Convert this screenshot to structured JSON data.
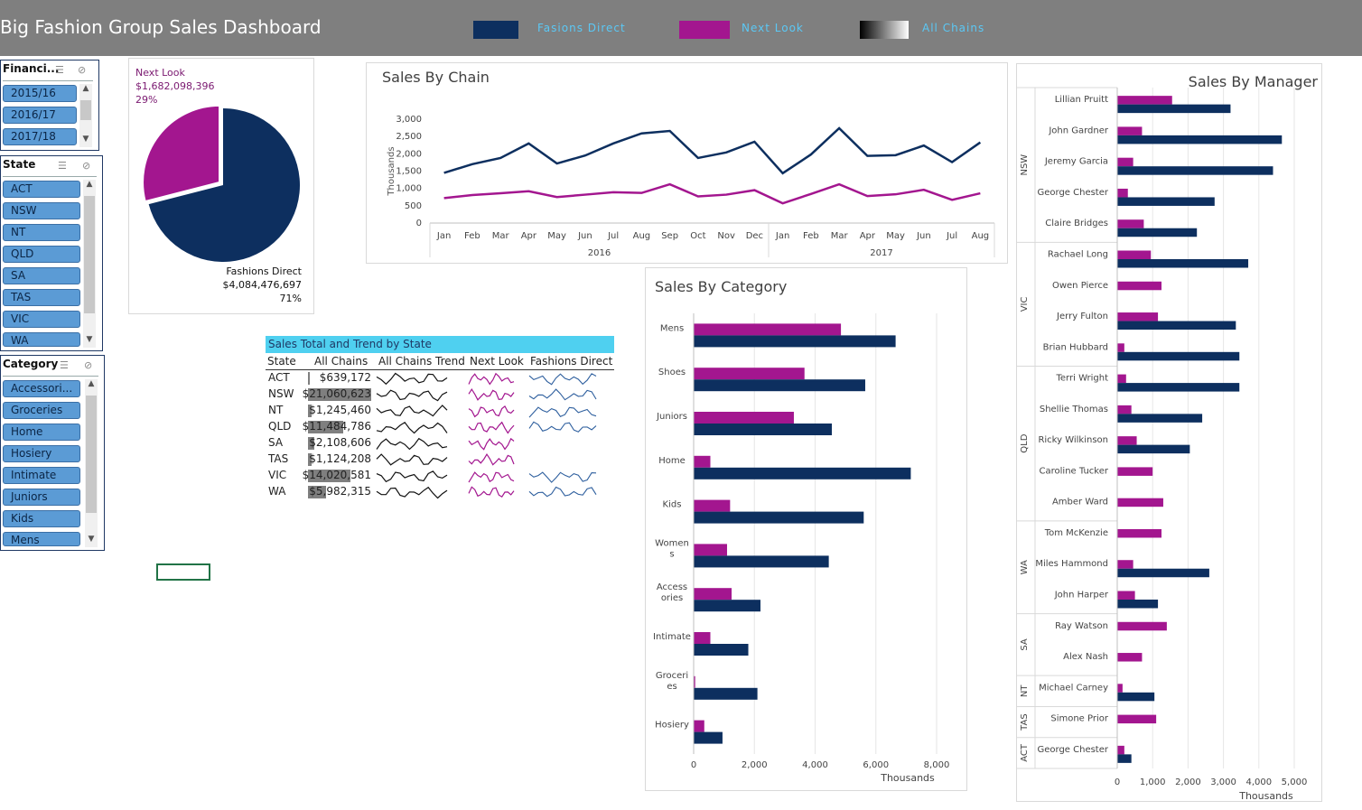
{
  "header": {
    "title": "Big Fashion Group Sales Dashboard",
    "legend": [
      {
        "label": "Fasions Direct",
        "color": "#0d2f5f"
      },
      {
        "label": "Next Look",
        "color": "#a3168f"
      },
      {
        "label": "All Chains",
        "color": "gradient"
      }
    ]
  },
  "slicers": {
    "financial": {
      "title": "Financi...",
      "items": [
        "2015/16",
        "2016/17",
        "2017/18"
      ]
    },
    "state": {
      "title": "State",
      "items": [
        "ACT",
        "NSW",
        "NT",
        "QLD",
        "SA",
        "TAS",
        "VIC",
        "WA"
      ]
    },
    "category": {
      "title": "Category",
      "items": [
        "Accessori...",
        "Groceries",
        "Home",
        "Hosiery",
        "Intimate",
        "Juniors",
        "Kids",
        "Mens"
      ]
    }
  },
  "pie": {
    "next_look": {
      "name": "Next Look",
      "value": "$1,682,098,396",
      "pct": "29%"
    },
    "fashions_direct": {
      "name": "Fashions Direct",
      "value": "$4,084,476,697",
      "pct": "71%"
    }
  },
  "table": {
    "banner": "Sales Total and Trend by State",
    "headers": [
      "State",
      "All Chains",
      "All Chains Trend",
      "Next Look",
      "Fashions Direct"
    ],
    "rows": [
      {
        "state": "ACT",
        "total": "$639,172",
        "share": 0.03
      },
      {
        "state": "NSW",
        "total": "$21,060,623",
        "share": 1.0
      },
      {
        "state": "NT",
        "total": "$1,245,460",
        "share": 0.06
      },
      {
        "state": "QLD",
        "total": "$11,484,786",
        "share": 0.55
      },
      {
        "state": "SA",
        "total": "$2,108,606",
        "share": 0.1
      },
      {
        "state": "TAS",
        "total": "$1,124,208",
        "share": 0.05
      },
      {
        "state": "VIC",
        "total": "$14,020,581",
        "share": 0.67
      },
      {
        "state": "WA",
        "total": "$5,982,315",
        "share": 0.28
      }
    ]
  },
  "chart_data": [
    {
      "type": "line",
      "title": "Sales By Chain",
      "ylabel": "Thousands",
      "xlabel": "",
      "categories": [
        "Jan",
        "Feb",
        "Mar",
        "Apr",
        "May",
        "Jun",
        "Jul",
        "Aug",
        "Sep",
        "Oct",
        "Nov",
        "Dec",
        "Jan",
        "Feb",
        "Mar",
        "Apr",
        "May",
        "Jun",
        "Jul",
        "Aug"
      ],
      "groups": [
        {
          "label": "2016",
          "count": 12
        },
        {
          "label": "2017",
          "count": 8
        }
      ],
      "yticks": [
        "0",
        "500",
        "1,000",
        "1,500",
        "2,000",
        "2,500",
        "3,000"
      ],
      "ylim": [
        0,
        3000
      ],
      "series": [
        {
          "color": "#0d2f5f",
          "values": [
            1450,
            1700,
            1880,
            2300,
            1720,
            1950,
            2300,
            2590,
            2660,
            1880,
            2040,
            2350,
            1440,
            1980,
            2740,
            1940,
            1960,
            2240,
            1760,
            2330
          ]
        },
        {
          "color": "#a3168f",
          "values": [
            720,
            810,
            860,
            920,
            750,
            820,
            890,
            870,
            1120,
            770,
            820,
            950,
            570,
            840,
            1120,
            780,
            830,
            960,
            670,
            860
          ]
        }
      ]
    },
    {
      "type": "bar",
      "title": "Sales By Category",
      "xlabel": "Thousands",
      "categories": [
        "Mens",
        "Shoes",
        "Juniors",
        "Home",
        "Kids",
        "Women\ns",
        "Access\nories",
        "Intimate",
        "Groceri\nes",
        "Hosiery"
      ],
      "xticks": [
        "0",
        "2,000",
        "4,000",
        "6,000",
        "8,000"
      ],
      "xlim": [
        0,
        8000
      ],
      "series": [
        {
          "color": "#a3168f",
          "values": [
            4850,
            3650,
            3300,
            550,
            1200,
            1100,
            1250,
            550,
            50,
            350
          ]
        },
        {
          "color": "#0d2f5f",
          "values": [
            6650,
            5650,
            4550,
            7150,
            5600,
            4450,
            2200,
            1800,
            2100,
            950
          ]
        }
      ]
    },
    {
      "type": "bar",
      "title": "Sales By Manager",
      "xlabel": "Thousands",
      "xticks": [
        "0",
        "1,000",
        "2,000",
        "3,000",
        "4,000",
        "5,000"
      ],
      "xlim": [
        0,
        5000
      ],
      "groups": [
        {
          "label": "NSW",
          "count": 5
        },
        {
          "label": "VIC",
          "count": 4
        },
        {
          "label": "QLD",
          "count": 5
        },
        {
          "label": "WA",
          "count": 3
        },
        {
          "label": "SA",
          "count": 2
        },
        {
          "label": "NT",
          "count": 1
        },
        {
          "label": "TAS",
          "count": 1
        },
        {
          "label": "ACT",
          "count": 1
        }
      ],
      "categories": [
        "Lillian Pruitt",
        "John Gardner",
        "Jeremy Garcia",
        "George Chester",
        "Claire Bridges",
        "Rachael Long",
        "Owen Pierce",
        "Jerry Fulton",
        "Brian Hubbard",
        "Terri Wright",
        "Shellie Thomas",
        "Ricky Wilkinson",
        "Caroline Tucker",
        "Amber Ward",
        "Tom McKenzie",
        "Miles Hammond",
        "John Harper",
        "Ray Watson",
        "Alex Nash",
        "Michael Carney",
        "Simone Prior",
        "George Chester"
      ],
      "series": [
        {
          "color": "#a3168f",
          "values": [
            1550,
            700,
            450,
            300,
            750,
            950,
            1250,
            1150,
            200,
            250,
            400,
            550,
            1000,
            1300,
            1250,
            450,
            500,
            1400,
            700,
            150,
            1100,
            200
          ]
        },
        {
          "color": "#0d2f5f",
          "values": [
            3200,
            4650,
            4400,
            2750,
            2250,
            3700,
            0,
            3350,
            3450,
            3450,
            2400,
            2050,
            0,
            0,
            0,
            2600,
            1150,
            0,
            0,
            1050,
            0,
            400
          ]
        }
      ]
    }
  ]
}
